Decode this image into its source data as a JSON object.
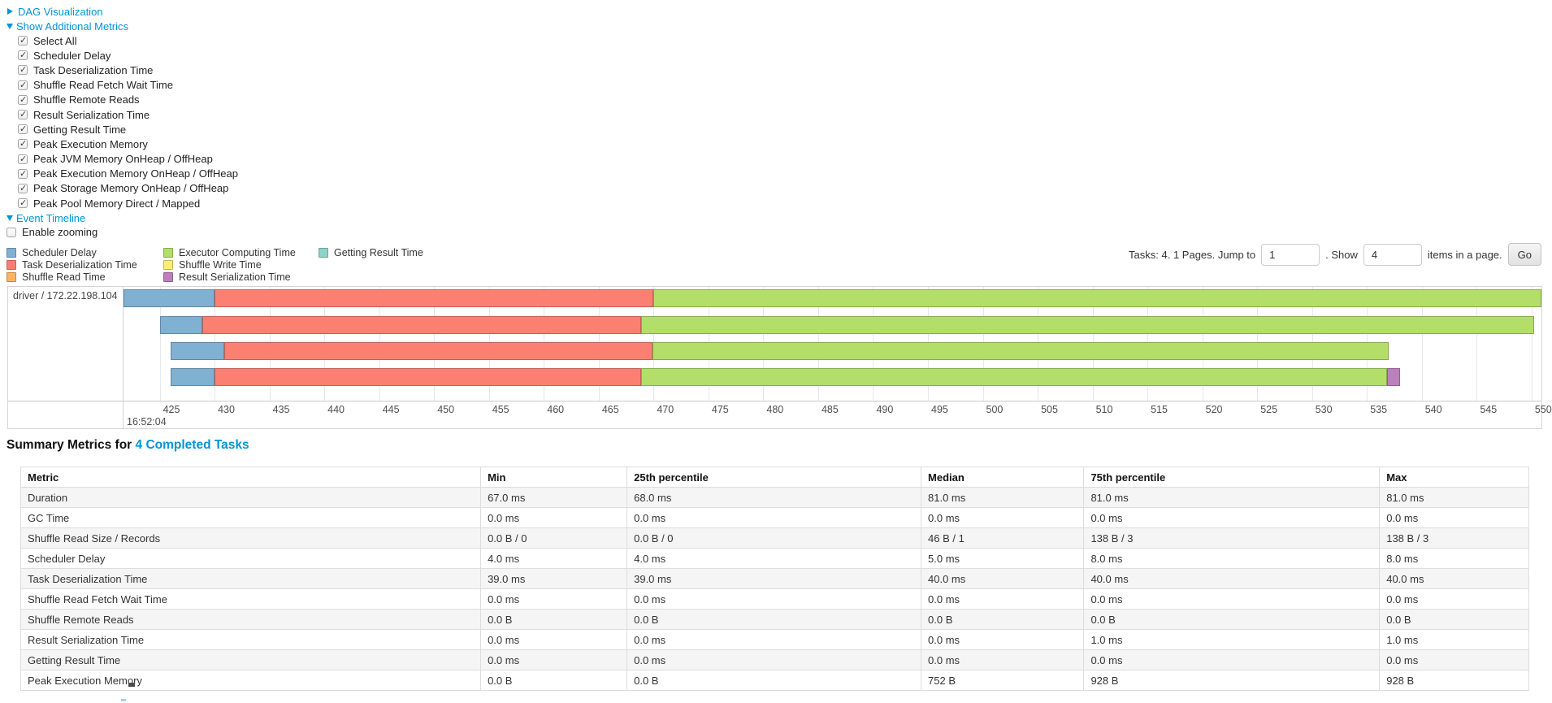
{
  "sections": {
    "dag": {
      "label": "DAG Visualization",
      "state": "collapsed"
    },
    "metrics": {
      "label": "Show Additional Metrics",
      "state": "expanded"
    },
    "timeline": {
      "label": "Event Timeline",
      "state": "expanded"
    }
  },
  "metric_checkboxes": [
    {
      "label": "Select All",
      "checked": true
    },
    {
      "label": "Scheduler Delay",
      "checked": true
    },
    {
      "label": "Task Deserialization Time",
      "checked": true
    },
    {
      "label": "Shuffle Read Fetch Wait Time",
      "checked": true
    },
    {
      "label": "Shuffle Remote Reads",
      "checked": true
    },
    {
      "label": "Result Serialization Time",
      "checked": true
    },
    {
      "label": "Getting Result Time",
      "checked": true
    },
    {
      "label": "Peak Execution Memory",
      "checked": true
    },
    {
      "label": "Peak JVM Memory OnHeap / OffHeap",
      "checked": true
    },
    {
      "label": "Peak Execution Memory OnHeap / OffHeap",
      "checked": true
    },
    {
      "label": "Peak Storage Memory OnHeap / OffHeap",
      "checked": true
    },
    {
      "label": "Peak Pool Memory Direct / Mapped",
      "checked": true
    }
  ],
  "enable_zooming": {
    "label": "Enable zooming",
    "checked": false
  },
  "palette": {
    "scheduler_delay": "#80B1D3",
    "task_deserialization": "#FB8072",
    "shuffle_read": "#FDB462",
    "executor_computing": "#B3DE69",
    "shuffle_write": "#FFED6F",
    "result_serialization": "#BC80BD",
    "getting_result": "#8DD3C7"
  },
  "legend": {
    "columns": [
      [
        {
          "key": "scheduler_delay",
          "label": "Scheduler Delay"
        },
        {
          "key": "task_deserialization",
          "label": "Task Deserialization Time"
        },
        {
          "key": "shuffle_read",
          "label": "Shuffle Read Time"
        }
      ],
      [
        {
          "key": "executor_computing",
          "label": "Executor Computing Time"
        },
        {
          "key": "shuffle_write",
          "label": "Shuffle Write Time"
        },
        {
          "key": "result_serialization",
          "label": "Result Serialization Time"
        }
      ],
      [
        {
          "key": "getting_result",
          "label": "Getting Result Time"
        }
      ]
    ]
  },
  "pagination": {
    "tasks_text": "Tasks: 4. 1 Pages. Jump to",
    "jump_value": "1",
    "show_label": ". Show",
    "show_value": "4",
    "items_text": "items in a page.",
    "go_label": "Go"
  },
  "chart_data": {
    "type": "timeline",
    "group_label": "driver / 172.22.198.104",
    "axis": {
      "min": 421.7,
      "max": 550.9,
      "unit": "ms after 16:52:04",
      "major_label": "16:52:04",
      "ticks": [
        425,
        430,
        435,
        440,
        445,
        450,
        455,
        460,
        465,
        470,
        475,
        480,
        485,
        490,
        495,
        500,
        505,
        510,
        515,
        520,
        525,
        530,
        535,
        540,
        545,
        550
      ]
    },
    "tasks": [
      {
        "segments": [
          {
            "type": "scheduler_delay",
            "start": 421.7,
            "end": 430.0
          },
          {
            "type": "task_deserialization",
            "start": 430.0,
            "end": 470.0
          },
          {
            "type": "executor_computing",
            "start": 470.0,
            "end": 550.9
          }
        ]
      },
      {
        "segments": [
          {
            "type": "scheduler_delay",
            "start": 425.0,
            "end": 428.9
          },
          {
            "type": "task_deserialization",
            "start": 428.9,
            "end": 468.9
          },
          {
            "type": "executor_computing",
            "start": 468.9,
            "end": 550.2
          }
        ]
      },
      {
        "segments": [
          {
            "type": "scheduler_delay",
            "start": 426.0,
            "end": 430.9
          },
          {
            "type": "task_deserialization",
            "start": 430.9,
            "end": 469.9
          },
          {
            "type": "executor_computing",
            "start": 469.9,
            "end": 537.0
          }
        ]
      },
      {
        "segments": [
          {
            "type": "scheduler_delay",
            "start": 426.0,
            "end": 430.0
          },
          {
            "type": "task_deserialization",
            "start": 430.0,
            "end": 468.9
          },
          {
            "type": "executor_computing",
            "start": 468.9,
            "end": 536.8
          },
          {
            "type": "result_serialization",
            "start": 536.8,
            "end": 538.0
          }
        ]
      }
    ]
  },
  "summary": {
    "heading_prefix": "Summary Metrics for",
    "heading_link": "4 Completed Tasks",
    "table": {
      "columns": [
        "Metric",
        "Min",
        "25th percentile",
        "Median",
        "75th percentile",
        "Max"
      ],
      "rows": [
        {
          "metric": "Duration",
          "values": [
            "67.0 ms",
            "68.0 ms",
            "81.0 ms",
            "81.0 ms",
            "81.0 ms"
          ]
        },
        {
          "metric": "GC Time",
          "values": [
            "0.0 ms",
            "0.0 ms",
            "0.0 ms",
            "0.0 ms",
            "0.0 ms"
          ]
        },
        {
          "metric": "Shuffle Read Size / Records",
          "values": [
            "0.0 B / 0",
            "0.0 B / 0",
            "46 B / 1",
            "138 B / 3",
            "138 B / 3"
          ]
        },
        {
          "metric": "Scheduler Delay",
          "values": [
            "4.0 ms",
            "4.0 ms",
            "5.0 ms",
            "8.0 ms",
            "8.0 ms"
          ]
        },
        {
          "metric": "Task Deserialization Time",
          "values": [
            "39.0 ms",
            "39.0 ms",
            "40.0 ms",
            "40.0 ms",
            "40.0 ms"
          ]
        },
        {
          "metric": "Shuffle Read Fetch Wait Time",
          "values": [
            "0.0 ms",
            "0.0 ms",
            "0.0 ms",
            "0.0 ms",
            "0.0 ms"
          ]
        },
        {
          "metric": "Shuffle Remote Reads",
          "values": [
            "0.0 B",
            "0.0 B",
            "0.0 B",
            "0.0 B",
            "0.0 B"
          ]
        },
        {
          "metric": "Result Serialization Time",
          "values": [
            "0.0 ms",
            "0.0 ms",
            "0.0 ms",
            "1.0 ms",
            "1.0 ms"
          ]
        },
        {
          "metric": "Getting Result Time",
          "values": [
            "0.0 ms",
            "0.0 ms",
            "0.0 ms",
            "0.0 ms",
            "0.0 ms"
          ]
        },
        {
          "metric": "Peak Execution Memory",
          "values": [
            "0.0 B",
            "0.0 B",
            "752 B",
            "928 B",
            "928 B"
          ]
        }
      ]
    }
  }
}
